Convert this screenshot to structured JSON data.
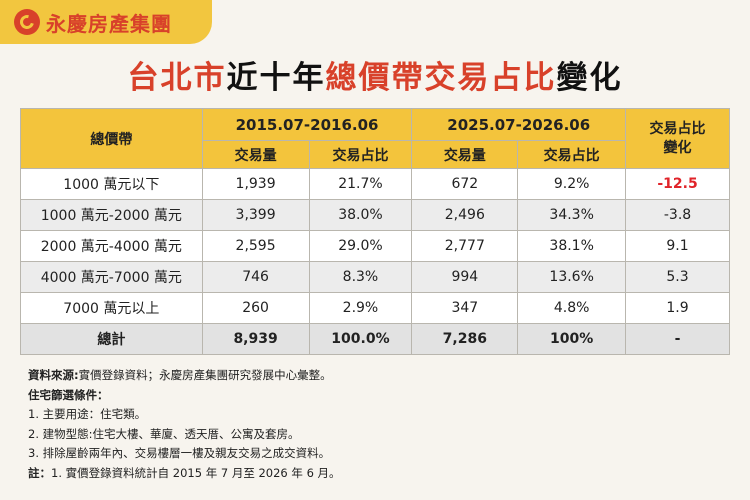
{
  "brand": {
    "name": "永慶房產集團"
  },
  "title": {
    "part1": "台北市",
    "part2": "近十年",
    "part3": "總價帶交易占比",
    "part4": "變化"
  },
  "table": {
    "col_price_band": "總價帶",
    "period1": "2015.07-2016.06",
    "period2": "2025.07-2026.06",
    "col_change": "交易占比變化",
    "sub_volume": "交易量",
    "sub_share": "交易占比",
    "rows": [
      {
        "band": "1000 萬元以下",
        "v1": "1,939",
        "s1": "21.7%",
        "v2": "672",
        "s2": "9.2%",
        "change": "-12.5"
      },
      {
        "band": "1000 萬元-2000 萬元",
        "v1": "3,399",
        "s1": "38.0%",
        "v2": "2,496",
        "s2": "34.3%",
        "change": "-3.8"
      },
      {
        "band": "2000 萬元-4000 萬元",
        "v1": "2,595",
        "s1": "29.0%",
        "v2": "2,777",
        "s2": "38.1%",
        "change": "9.1"
      },
      {
        "band": "4000 萬元-7000 萬元",
        "v1": "746",
        "s1": "8.3%",
        "v2": "994",
        "s2": "13.6%",
        "change": "5.3"
      },
      {
        "band": "7000 萬元以上",
        "v1": "260",
        "s1": "2.9%",
        "v2": "347",
        "s2": "4.8%",
        "change": "1.9"
      }
    ],
    "total": {
      "band": "總計",
      "v1": "8,939",
      "s1": "100.0%",
      "v2": "7,286",
      "s2": "100%",
      "change": "-"
    }
  },
  "notes": {
    "source_label": "資料來源:",
    "source_text": "實價登錄資料；永慶房產集團研究發展中心彙整。",
    "criteria_label": "住宅篩選條件：",
    "c1": "1. 主要用途：住宅類。",
    "c2": "2. 建物型態:住宅大樓、華廈、透天厝、公寓及套房。",
    "c3": "3. 排除屋齡兩年內、交易樓層一樓及親友交易之成交資料。",
    "note_label": "註：",
    "note_text": "1. 實價登錄資料統計自 2015 年 7 月至 2026 年 6 月。"
  },
  "colors": {
    "accent": "#d8412a",
    "header": "#f3c43c",
    "negative": "#e0242a"
  }
}
